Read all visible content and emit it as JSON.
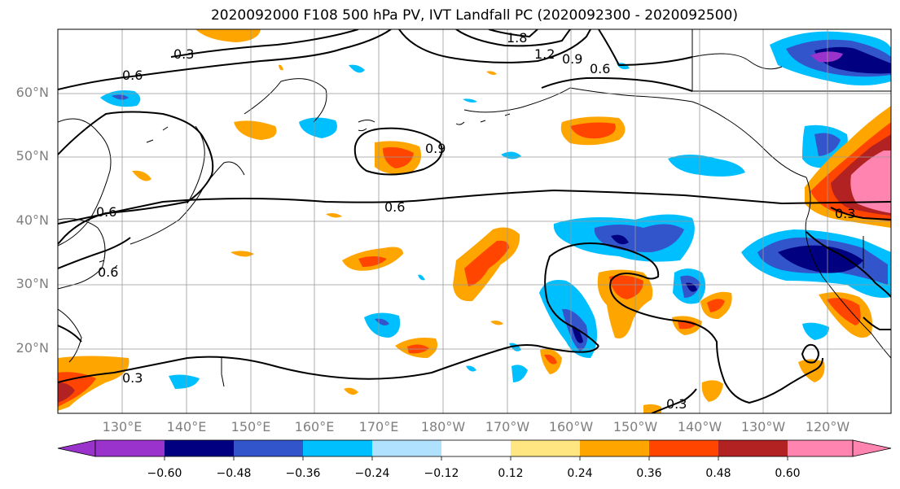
{
  "title": "2020092000 F108 500 hPa PV, IVT Landfall PC (2020092300 - 2020092500)",
  "lat_labels": [
    "60°N",
    "50°N",
    "40°N",
    "30°N",
    "20°N"
  ],
  "lon_labels": [
    "130°E",
    "140°E",
    "150°E",
    "160°E",
    "170°E",
    "180°W",
    "170°W",
    "160°W",
    "150°W",
    "140°W",
    "130°W",
    "120°W"
  ],
  "contour_labels": [
    "0.3",
    "0.6",
    "0.6",
    "0.6",
    "0.9",
    "1.8",
    "1.2",
    "0.9",
    "0.6",
    "0.3",
    "0.3",
    "0.3",
    "0.6"
  ],
  "colorbar": {
    "ticks": [
      "−0.60",
      "−0.48",
      "−0.36",
      "−0.24",
      "−0.12",
      "0.12",
      "0.24",
      "0.36",
      "0.48",
      "0.60"
    ],
    "colors": [
      "#9933cc",
      "#000080",
      "#3355cc",
      "#00bfff",
      "#b0e2ff",
      "#ffffff",
      "#ffe680",
      "#ffa500",
      "#ff4500",
      "#b22222",
      "#ff85b0"
    ]
  }
}
